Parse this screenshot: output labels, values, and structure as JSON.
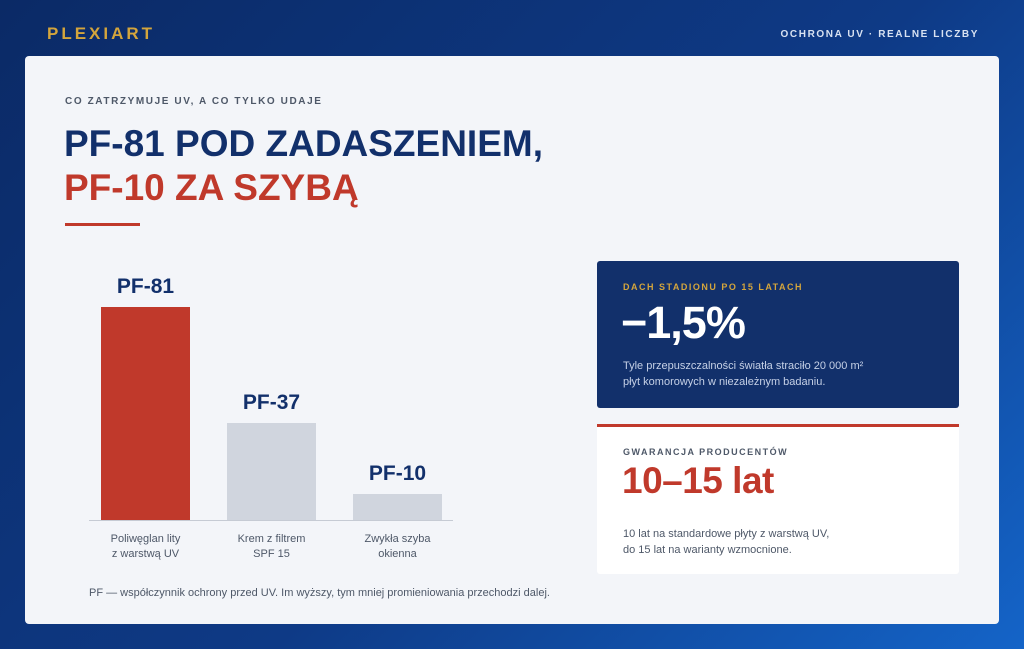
{
  "header": {
    "brand": "PLEXIART",
    "tagline": "OCHRONA UV · REALNE LICZBY"
  },
  "main": {
    "kicker": "CO ZATRZYMUJE UV, A CO TYLKO UDAJE",
    "title_line1": "PF-81 POD ZADASZENIEM,",
    "title_line2": "PF-10 ZA SZYBĄ",
    "footnote": "PF — współczynnik ochrony przed UV. Im wyższy, tym mniej promieniowania przechodzi dalej."
  },
  "chart_data": {
    "type": "bar",
    "categories": [
      [
        "Poliwęglan lity",
        "z warstwą UV"
      ],
      [
        "Krem z filtrem",
        "SPF 15"
      ],
      [
        "Zwykła szyba",
        "okienna"
      ]
    ],
    "values": [
      81,
      37,
      10
    ],
    "value_labels": [
      "PF-81",
      "PF-37",
      "PF-10"
    ],
    "colors": [
      "#c0392b",
      "#d0d5de",
      "#d0d5de"
    ],
    "ylim": [
      0,
      81
    ]
  },
  "stat_dark": {
    "label": "DACH STADIONU PO 15 LATACH",
    "value": "−1,5%",
    "desc_line1": "Tyle przepuszczalności światła straciło 20 000 m²",
    "desc_line2": "płyt komorowych w niezależnym badaniu."
  },
  "stat_light": {
    "label": "GWARANCJA PRODUCENTÓW",
    "value": "10–15 lat",
    "desc_line1": "10 lat na standardowe płyty z warstwą UV,",
    "desc_line2": "do 15 lat na warianty wzmocnione."
  }
}
